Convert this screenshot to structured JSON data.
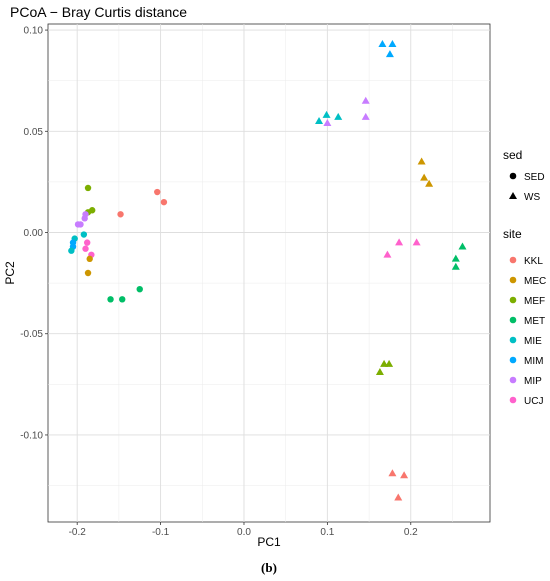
{
  "chart_data": {
    "type": "scatter",
    "title": "PCoA − Bray Curtis distance",
    "xlabel": "PC1",
    "ylabel": "PC2",
    "caption": "(b)",
    "xlim": [
      -0.235,
      0.295
    ],
    "ylim": [
      -0.143,
      0.103
    ],
    "xticks": [
      -0.2,
      -0.1,
      0.0,
      0.1,
      0.2
    ],
    "xtick_labels": [
      "-0.2",
      "-0.1",
      "0.0",
      "0.1",
      "0.2"
    ],
    "yticks": [
      0.1,
      0.05,
      0.0,
      -0.05,
      -0.1
    ],
    "ytick_labels": [
      "0.10",
      "0.05",
      "0.00",
      "-0.05",
      "-0.10"
    ],
    "grid": true,
    "legend_shape": {
      "title": "sed",
      "entries": [
        {
          "label": "SED",
          "shape": "circle"
        },
        {
          "label": "WS",
          "shape": "triangle"
        }
      ]
    },
    "legend_color": {
      "title": "site",
      "entries": [
        {
          "label": "KKL",
          "color": "#F8766D"
        },
        {
          "label": "MEC",
          "color": "#CD9600"
        },
        {
          "label": "MEF",
          "color": "#7CAE00"
        },
        {
          "label": "MET",
          "color": "#00BE67"
        },
        {
          "label": "MIE",
          "color": "#00BFC4"
        },
        {
          "label": "MIM",
          "color": "#00A9FF"
        },
        {
          "label": "MIP",
          "color": "#C77CFF"
        },
        {
          "label": "UCJ",
          "color": "#FF61CC"
        }
      ]
    },
    "points": [
      {
        "site": "KKL",
        "sed": "SED",
        "x": -0.104,
        "y": 0.02
      },
      {
        "site": "KKL",
        "sed": "SED",
        "x": -0.096,
        "y": 0.015
      },
      {
        "site": "KKL",
        "sed": "SED",
        "x": -0.148,
        "y": 0.009
      },
      {
        "site": "MEF",
        "sed": "SED",
        "x": -0.187,
        "y": 0.022
      },
      {
        "site": "MEF",
        "sed": "SED",
        "x": -0.182,
        "y": 0.011
      },
      {
        "site": "MEF",
        "sed": "SED",
        "x": -0.187,
        "y": 0.01
      },
      {
        "site": "MIP",
        "sed": "SED",
        "x": -0.19,
        "y": 0.009
      },
      {
        "site": "MIP",
        "sed": "SED",
        "x": -0.191,
        "y": 0.007
      },
      {
        "site": "MIP",
        "sed": "SED",
        "x": -0.196,
        "y": 0.004
      },
      {
        "site": "MIP",
        "sed": "SED",
        "x": -0.199,
        "y": 0.004
      },
      {
        "site": "MIE",
        "sed": "SED",
        "x": -0.192,
        "y": -0.001
      },
      {
        "site": "MIE",
        "sed": "SED",
        "x": -0.203,
        "y": -0.003
      },
      {
        "site": "MIM",
        "sed": "SED",
        "x": -0.205,
        "y": -0.005
      },
      {
        "site": "MIM",
        "sed": "SED",
        "x": -0.205,
        "y": -0.007
      },
      {
        "site": "MIE",
        "sed": "SED",
        "x": -0.207,
        "y": -0.009
      },
      {
        "site": "UCJ",
        "sed": "SED",
        "x": -0.188,
        "y": -0.005
      },
      {
        "site": "UCJ",
        "sed": "SED",
        "x": -0.19,
        "y": -0.008
      },
      {
        "site": "UCJ",
        "sed": "SED",
        "x": -0.183,
        "y": -0.011
      },
      {
        "site": "MEC",
        "sed": "SED",
        "x": -0.185,
        "y": -0.013
      },
      {
        "site": "MEC",
        "sed": "SED",
        "x": -0.187,
        "y": -0.02
      },
      {
        "site": "MET",
        "sed": "SED",
        "x": -0.16,
        "y": -0.033
      },
      {
        "site": "MET",
        "sed": "SED",
        "x": -0.146,
        "y": -0.033
      },
      {
        "site": "MET",
        "sed": "SED",
        "x": -0.125,
        "y": -0.028
      },
      {
        "site": "MIM",
        "sed": "WS",
        "x": 0.166,
        "y": 0.093
      },
      {
        "site": "MIM",
        "sed": "WS",
        "x": 0.178,
        "y": 0.093
      },
      {
        "site": "MIM",
        "sed": "WS",
        "x": 0.175,
        "y": 0.088
      },
      {
        "site": "MIE",
        "sed": "WS",
        "x": 0.099,
        "y": 0.058
      },
      {
        "site": "MIE",
        "sed": "WS",
        "x": 0.113,
        "y": 0.057
      },
      {
        "site": "MIE",
        "sed": "WS",
        "x": 0.09,
        "y": 0.055
      },
      {
        "site": "MIP",
        "sed": "WS",
        "x": 0.1,
        "y": 0.054
      },
      {
        "site": "MIP",
        "sed": "WS",
        "x": 0.146,
        "y": 0.065
      },
      {
        "site": "MIP",
        "sed": "WS",
        "x": 0.146,
        "y": 0.057
      },
      {
        "site": "MEC",
        "sed": "WS",
        "x": 0.213,
        "y": 0.035
      },
      {
        "site": "MEC",
        "sed": "WS",
        "x": 0.216,
        "y": 0.027
      },
      {
        "site": "MEC",
        "sed": "WS",
        "x": 0.222,
        "y": 0.024
      },
      {
        "site": "UCJ",
        "sed": "WS",
        "x": 0.186,
        "y": -0.005
      },
      {
        "site": "UCJ",
        "sed": "WS",
        "x": 0.207,
        "y": -0.005
      },
      {
        "site": "UCJ",
        "sed": "WS",
        "x": 0.172,
        "y": -0.011
      },
      {
        "site": "MET",
        "sed": "WS",
        "x": 0.262,
        "y": -0.007
      },
      {
        "site": "MET",
        "sed": "WS",
        "x": 0.254,
        "y": -0.013
      },
      {
        "site": "MET",
        "sed": "WS",
        "x": 0.254,
        "y": -0.017
      },
      {
        "site": "MEF",
        "sed": "WS",
        "x": 0.168,
        "y": -0.065
      },
      {
        "site": "MEF",
        "sed": "WS",
        "x": 0.174,
        "y": -0.065
      },
      {
        "site": "MEF",
        "sed": "WS",
        "x": 0.163,
        "y": -0.069
      },
      {
        "site": "KKL",
        "sed": "WS",
        "x": 0.178,
        "y": -0.119
      },
      {
        "site": "KKL",
        "sed": "WS",
        "x": 0.192,
        "y": -0.12
      },
      {
        "site": "KKL",
        "sed": "WS",
        "x": 0.185,
        "y": -0.131
      }
    ]
  }
}
